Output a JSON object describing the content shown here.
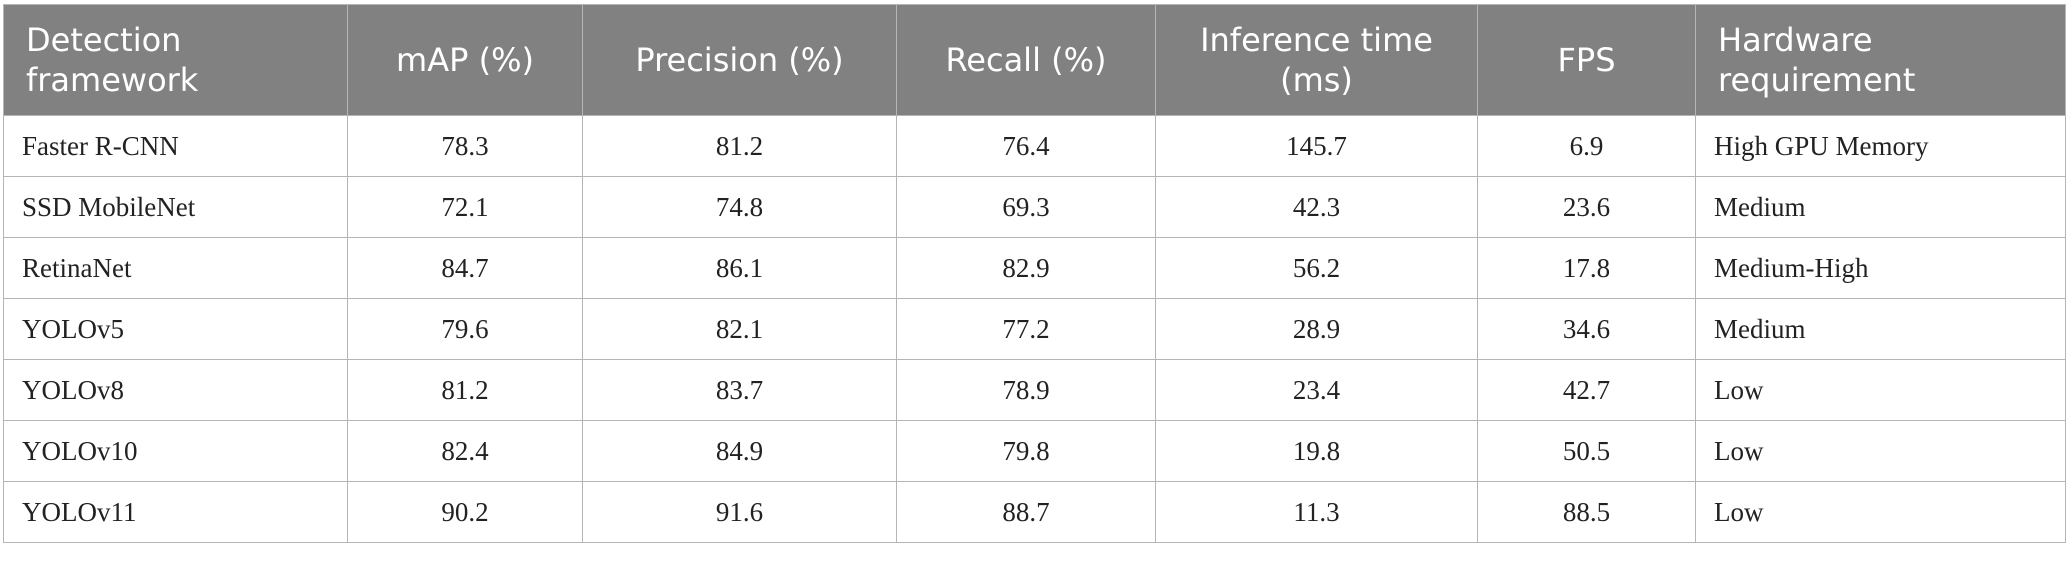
{
  "table": {
    "header": [
      "Detection framework",
      "mAP (%)",
      "Precision (%)",
      "Recall (%)",
      "Inference time (ms)",
      "FPS",
      "Hardware requirement"
    ],
    "rows": [
      [
        "Faster R-CNN",
        "78.3",
        "81.2",
        "76.4",
        "145.7",
        "6.9",
        "High GPU Memory"
      ],
      [
        "SSD MobileNet",
        "72.1",
        "74.8",
        "69.3",
        "42.3",
        "23.6",
        "Medium"
      ],
      [
        "RetinaNet",
        "84.7",
        "86.1",
        "82.9",
        "56.2",
        "17.8",
        "Medium-High"
      ],
      [
        "YOLOv5",
        "79.6",
        "82.1",
        "77.2",
        "28.9",
        "34.6",
        "Medium"
      ],
      [
        "YOLOv8",
        "81.2",
        "83.7",
        "78.9",
        "23.4",
        "42.7",
        "Low"
      ],
      [
        "YOLOv10",
        "82.4",
        "84.9",
        "79.8",
        "19.8",
        "50.5",
        "Low"
      ],
      [
        "YOLOv11",
        "90.2",
        "91.6",
        "88.7",
        "11.3",
        "88.5",
        "Low"
      ]
    ]
  }
}
